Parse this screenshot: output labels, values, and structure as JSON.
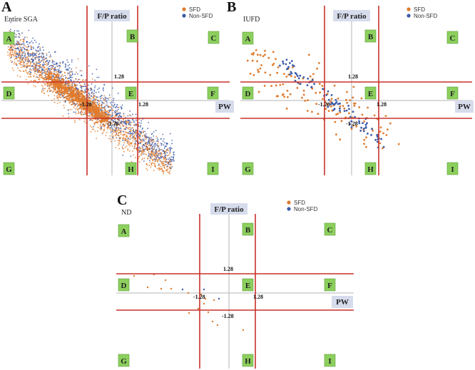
{
  "chart_data": [
    {
      "type": "scatter",
      "panel": "A",
      "subtitle": "Entire SGA",
      "xlabel": "PW",
      "ylabel": "F/P ratio",
      "thresholds": {
        "upper_y": "1.28",
        "neg_x": "-1.28",
        "pos_x": "1.28",
        "lower_y": "-1.28"
      },
      "regions": [
        "A",
        "B",
        "C",
        "D",
        "E",
        "F",
        "G",
        "H",
        "I"
      ],
      "series": [
        {
          "name": "SFD",
          "color": "#e07b2e"
        },
        {
          "name": "Non-SFD",
          "color": "#3c5ba9"
        }
      ],
      "grid": false
    },
    {
      "type": "scatter",
      "panel": "B",
      "subtitle": "IUFD",
      "xlabel": "PW",
      "ylabel": "F/P ratio",
      "thresholds": {
        "upper_y": "1.28",
        "neg_x": "-1.28",
        "pos_x": "1.28",
        "lower_y": "-1.28"
      },
      "regions": [
        "A",
        "B",
        "C",
        "D",
        "E",
        "F",
        "G",
        "H",
        "I"
      ],
      "series": [
        {
          "name": "SFD",
          "color": "#e07b2e"
        },
        {
          "name": "Non-SFD",
          "color": "#3c5ba9"
        }
      ],
      "grid": false
    },
    {
      "type": "scatter",
      "panel": "C",
      "subtitle": "ND",
      "xlabel": "PW",
      "ylabel": "F/P ratio",
      "thresholds": {
        "upper_y": "1.28",
        "neg_x": "-1.28",
        "pos_x": "1.28",
        "lower_y": "-1.28"
      },
      "regions": [
        "A",
        "B",
        "C",
        "D",
        "E",
        "F",
        "G",
        "H",
        "I"
      ],
      "series": [
        {
          "name": "SFD",
          "color": "#e07b2e"
        },
        {
          "name": "Non-SFD",
          "color": "#3c5ba9"
        }
      ],
      "grid": false
    }
  ]
}
